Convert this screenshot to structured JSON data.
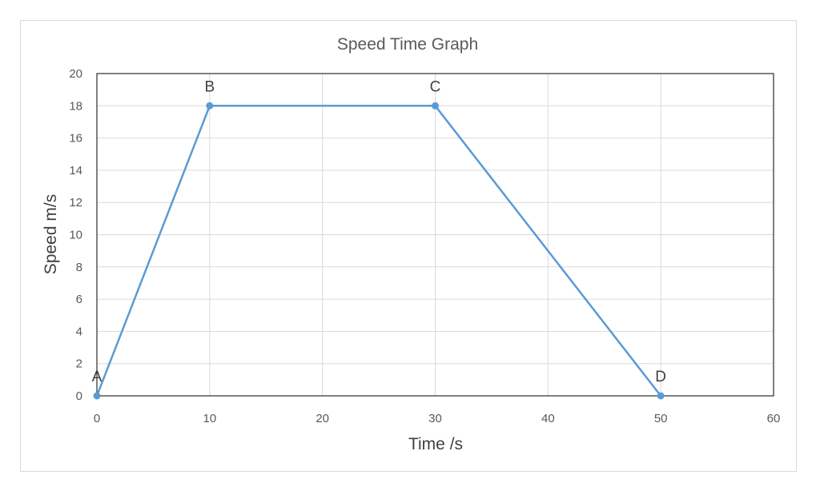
{
  "chart_data": {
    "type": "line",
    "title": "Speed Time Graph",
    "xlabel": "Time /s",
    "ylabel": "Speed m/s",
    "xlim": [
      0,
      60
    ],
    "ylim": [
      0,
      20
    ],
    "x_ticks": [
      0,
      10,
      20,
      30,
      40,
      50,
      60
    ],
    "y_ticks": [
      0,
      2,
      4,
      6,
      8,
      10,
      12,
      14,
      16,
      18,
      20
    ],
    "grid": true,
    "legend": "none",
    "series": [
      {
        "color": "#5b9bd5",
        "points": [
          {
            "x": 0,
            "y": 0,
            "label": "A"
          },
          {
            "x": 10,
            "y": 18,
            "label": "B"
          },
          {
            "x": 30,
            "y": 18,
            "label": "C"
          },
          {
            "x": 50,
            "y": 0,
            "label": "D"
          }
        ]
      }
    ]
  }
}
